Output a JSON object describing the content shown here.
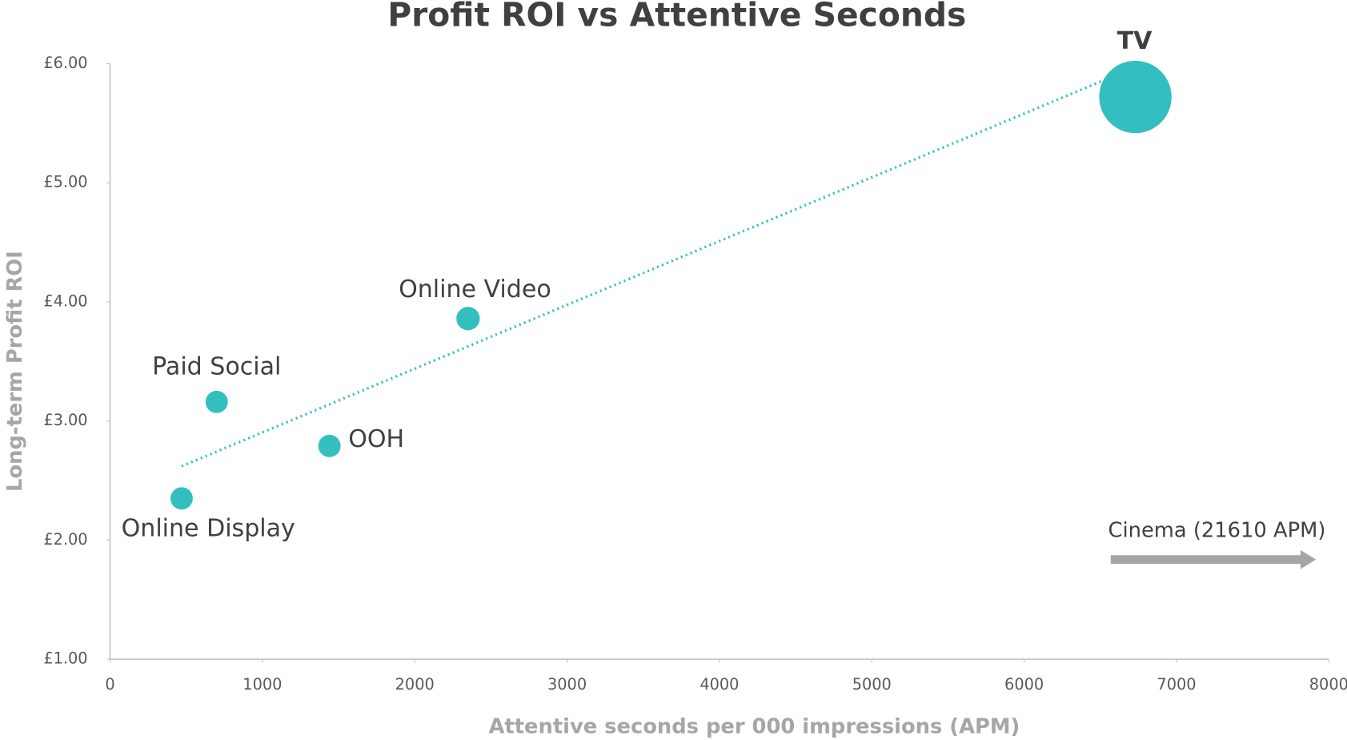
{
  "chart_data": {
    "type": "bubble",
    "title": "Profit ROI vs Attentive Seconds",
    "x_label": "Attentive seconds per 000 impressions (APM)",
    "y_label": "Long-term Profit ROI",
    "series": [
      {
        "name": null,
        "color": "#33bfbf",
        "labels": [
          "Online Display",
          "Paid Social",
          "OOH",
          "Online Video",
          "TV"
        ],
        "x": [
          470,
          700,
          1440,
          2350,
          6730
        ],
        "values": [
          2.35,
          3.16,
          2.79,
          3.86,
          5.72
        ],
        "sizes": [
          1,
          1,
          1,
          1.1,
          10.5
        ]
      }
    ],
    "trendline": {
      "color": "#33bfbf",
      "x": [
        470,
        6560
      ],
      "values": [
        2.62,
        5.88
      ]
    },
    "annotation": "Cinema (21610 APM)",
    "xlim": [
      0,
      8000
    ],
    "xticks": [
      0,
      1000,
      2000,
      3000,
      4000,
      5000,
      6000,
      7000,
      8000
    ],
    "ylim": [
      1,
      6
    ],
    "yticks": [
      {
        "value": 1,
        "label": "£1.00"
      },
      {
        "value": 2,
        "label": "£2.00"
      },
      {
        "value": 3,
        "label": "£3.00"
      },
      {
        "value": 4,
        "label": "£4.00"
      },
      {
        "value": 5,
        "label": "£5.00"
      },
      {
        "value": 6,
        "label": "£6.00"
      }
    ]
  }
}
